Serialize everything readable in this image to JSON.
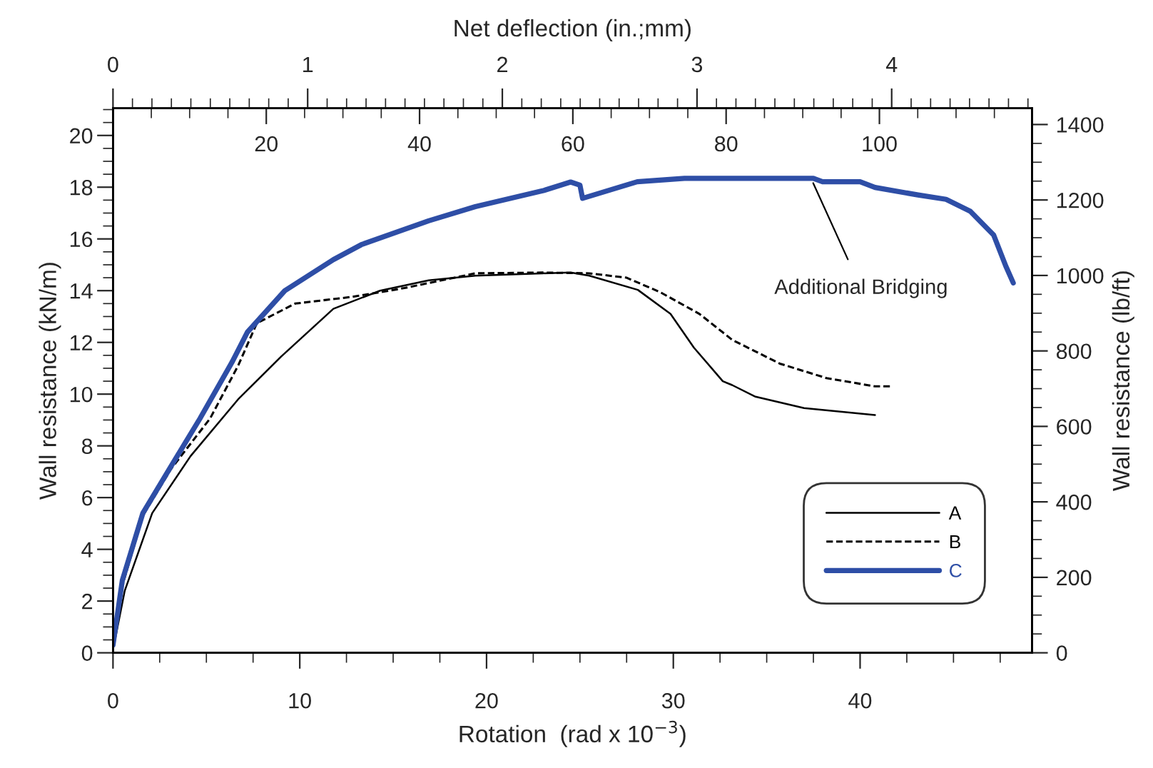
{
  "chart_data": {
    "type": "line",
    "xlabel": "Rotation  (rad x 10$^{−3}$)",
    "ylabel": "Wall resistance (kN/m)",
    "y2label": "Wall resistance (lb/ft)",
    "x2label": "Net deflection (in.;mm)",
    "xlim": [
      0,
      49.2
    ],
    "xticks": [
      0,
      10,
      20,
      30,
      40
    ],
    "ylim": [
      0,
      21.05
    ],
    "yticks": [
      0,
      2,
      4,
      6,
      8,
      10,
      12,
      14,
      16,
      18,
      20
    ],
    "y2lim": [
      0,
      1443
    ],
    "y2ticks": [
      0,
      200,
      400,
      600,
      800,
      1000,
      1200,
      1400
    ],
    "x2lim": [
      0,
      119.9
    ],
    "x2ticks": [
      20,
      40,
      60,
      80,
      100
    ],
    "grid": false,
    "legend": "bottom right",
    "marker": "none",
    "series": [
      {
        "name": "A",
        "color": "#000000",
        "line_style": "solid",
        "x": [
          0,
          0.08,
          0.63,
          2.1,
          4.15,
          6.7,
          9.0,
          11.8,
          14.3,
          16.9,
          19.4,
          23.0,
          24.5,
          25.5,
          28.1,
          29.85,
          31.1,
          32.65,
          33.15,
          34.4,
          37.0,
          40.8
        ],
        "values": [
          0.2,
          0.4,
          2.4,
          5.4,
          7.6,
          9.8,
          11.45,
          13.3,
          14.0,
          14.4,
          14.58,
          14.67,
          14.7,
          14.58,
          14.03,
          13.1,
          11.8,
          10.5,
          10.35,
          9.9,
          9.46,
          9.19
        ]
      },
      {
        "name": "B",
        "color": "#000000",
        "line_style": "dashed",
        "x": [
          0,
          0.5,
          1.6,
          3.1,
          5.2,
          6.7,
          7.7,
          9.75,
          12.8,
          15.6,
          19.4,
          23.0,
          25.5,
          27.5,
          29.3,
          31.4,
          33.15,
          35.7,
          38.2,
          40.8,
          41.6
        ],
        "values": [
          0.2,
          2.6,
          5.3,
          7.1,
          9.06,
          11.1,
          12.74,
          13.5,
          13.76,
          14.1,
          14.67,
          14.7,
          14.67,
          14.5,
          13.94,
          13.1,
          12.1,
          11.18,
          10.62,
          10.3,
          10.3
        ]
      },
      {
        "name": "C",
        "color": "#2e4ea6",
        "line_style": "solid",
        "x": [
          0,
          0.5,
          1.6,
          3.1,
          4.66,
          6.4,
          7.2,
          9.2,
          11.8,
          13.3,
          16.9,
          19.4,
          23.0,
          24.5,
          25.0,
          25.14,
          28.07,
          30.6,
          37.5,
          37.99,
          40.0,
          40.8,
          43.1,
          44.6,
          45.9,
          47.15,
          47.8,
          48.2
        ],
        "values": [
          0.3,
          2.8,
          5.4,
          7.2,
          9.06,
          11.27,
          12.4,
          14.0,
          15.2,
          15.78,
          16.7,
          17.25,
          17.86,
          18.2,
          18.08,
          17.57,
          18.21,
          18.34,
          18.34,
          18.21,
          18.21,
          17.99,
          17.7,
          17.53,
          17.07,
          16.15,
          14.95,
          14.3
        ]
      }
    ],
    "annotations": [
      {
        "text": "Additional Bridging",
        "x": 37.4,
        "y": 18.3
      },
      "0",
      "1",
      "2",
      "3",
      "4"
    ]
  }
}
